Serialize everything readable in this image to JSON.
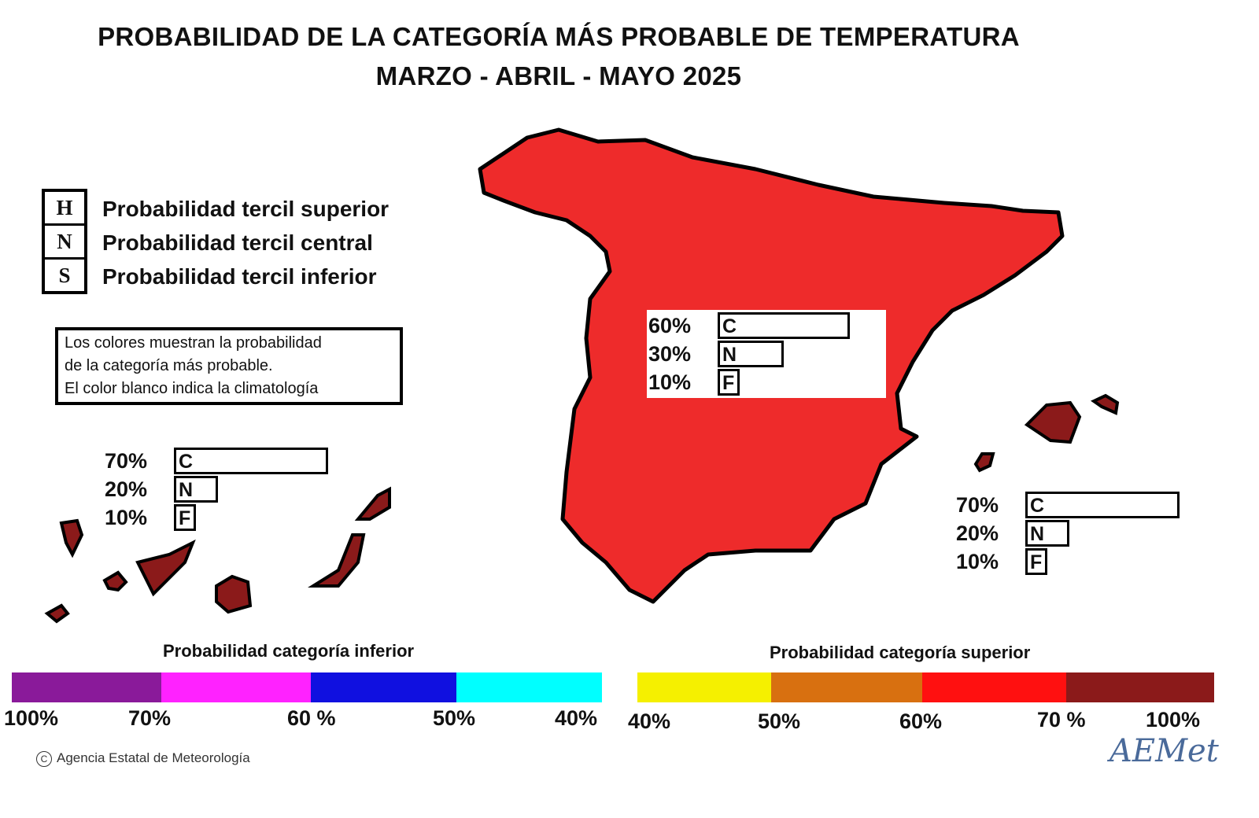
{
  "title": {
    "line1": "PROBABILIDAD DE LA CATEGORÍA MÁS PROBABLE DE TEMPERATURA",
    "line2": "MARZO - ABRIL - MAYO 2025"
  },
  "legend": {
    "items": [
      {
        "symbol": "H",
        "label": "Probabilidad  tercil superior"
      },
      {
        "symbol": "N",
        "label": "Probabilidad  tercil central"
      },
      {
        "symbol": "S",
        "label": "Probabilidad  tercil inferior"
      }
    ],
    "note": [
      "Los colores muestran la probabilidad",
      "de la categoría más probable.",
      "El color blanco indica la climatología"
    ]
  },
  "regions": [
    {
      "name": "peninsula",
      "color": "#ee2b2b",
      "bars": [
        {
          "pct": "60%",
          "value": 60,
          "cat": "C"
        },
        {
          "pct": "30%",
          "value": 30,
          "cat": "N"
        },
        {
          "pct": "10%",
          "value": 10,
          "cat": "F"
        }
      ]
    },
    {
      "name": "canarias",
      "color": "#8b1a1a",
      "bars": [
        {
          "pct": "70%",
          "value": 70,
          "cat": "C"
        },
        {
          "pct": "20%",
          "value": 20,
          "cat": "N"
        },
        {
          "pct": "10%",
          "value": 10,
          "cat": "F"
        }
      ]
    },
    {
      "name": "baleares",
      "color": "#8b1a1a",
      "bars": [
        {
          "pct": "70%",
          "value": 70,
          "cat": "C"
        },
        {
          "pct": "20%",
          "value": 20,
          "cat": "N"
        },
        {
          "pct": "10%",
          "value": 10,
          "cat": "F"
        }
      ]
    }
  ],
  "scale_inferior": {
    "title": "Probabilidad categoría inferior",
    "colors": [
      "#8a1a9a",
      "#ff22ff",
      "#1010e0",
      "#00ffff"
    ],
    "ticks": [
      "100%",
      "70%",
      "60 %",
      "50%",
      "40%"
    ]
  },
  "scale_superior": {
    "title": "Probabilidad categoría superior",
    "colors": [
      "#f5f000",
      "#d87010",
      "#ff1010",
      "#8b1a1a"
    ],
    "ticks": [
      "40%",
      "50%",
      "60%",
      "70 %",
      "100%"
    ]
  },
  "footer": {
    "credit": "Agencia Estatal de Meteorología",
    "logo": "AEMet"
  }
}
